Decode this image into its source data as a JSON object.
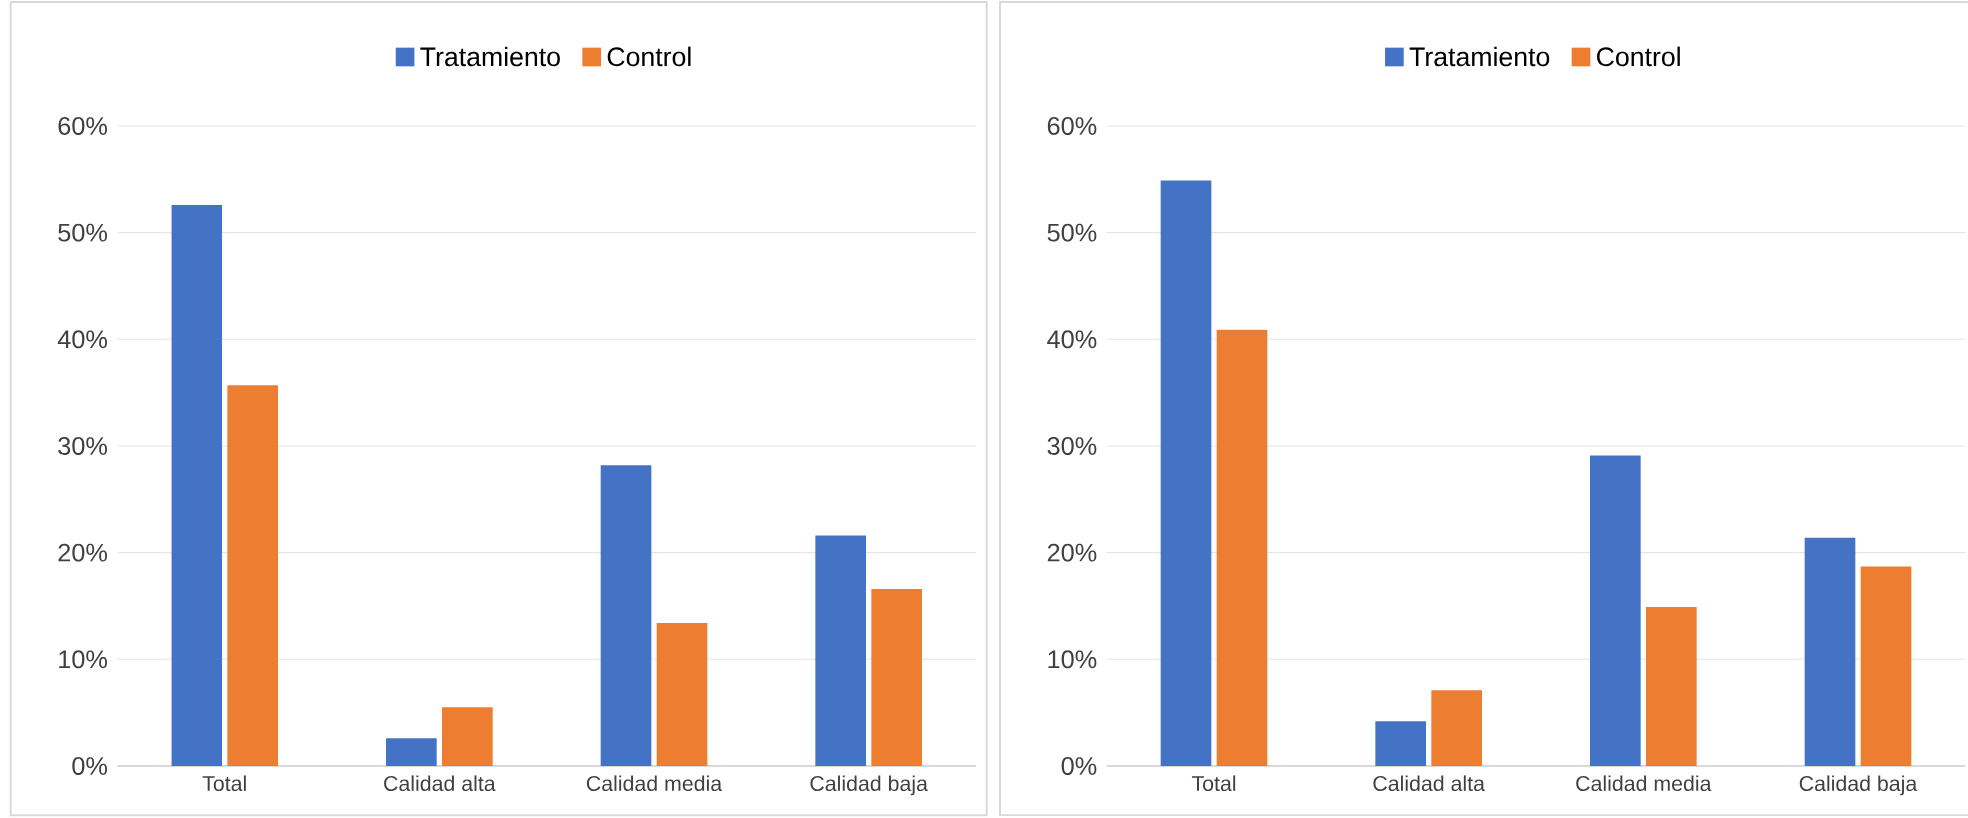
{
  "chart_data": [
    {
      "type": "bar",
      "categories": [
        "Total",
        "Calidad alta",
        "Calidad media",
        "Calidad baja"
      ],
      "series": [
        {
          "name": "Tratamiento",
          "color": "#4472c4",
          "values": [
            52.6,
            2.6,
            28.2,
            21.6
          ]
        },
        {
          "name": "Control",
          "color": "#ed7d31",
          "values": [
            35.7,
            5.5,
            13.4,
            16.6
          ]
        }
      ],
      "ylim": [
        0,
        60
      ],
      "yticks": [
        {
          "value": 0,
          "label": "0%"
        },
        {
          "value": 10,
          "label": "10%"
        },
        {
          "value": 20,
          "label": "20%"
        },
        {
          "value": 30,
          "label": "30%"
        },
        {
          "value": 40,
          "label": "40%"
        },
        {
          "value": 50,
          "label": "50%"
        },
        {
          "value": 60,
          "label": "60%"
        }
      ],
      "grid": "y",
      "legend": "top"
    },
    {
      "type": "bar",
      "categories": [
        "Total",
        "Calidad alta",
        "Calidad media",
        "Calidad baja"
      ],
      "series": [
        {
          "name": "Tratamiento",
          "color": "#4472c4",
          "values": [
            54.9,
            4.2,
            29.1,
            21.4
          ]
        },
        {
          "name": "Control",
          "color": "#ed7d31",
          "values": [
            40.9,
            7.1,
            14.9,
            18.7
          ]
        }
      ],
      "ylim": [
        0,
        60
      ],
      "yticks": [
        {
          "value": 0,
          "label": "0%"
        },
        {
          "value": 10,
          "label": "10%"
        },
        {
          "value": 20,
          "label": "20%"
        },
        {
          "value": 30,
          "label": "30%"
        },
        {
          "value": 40,
          "label": "40%"
        },
        {
          "value": 50,
          "label": "50%"
        },
        {
          "value": 60,
          "label": "60%"
        }
      ],
      "grid": "y",
      "legend": "top"
    }
  ]
}
